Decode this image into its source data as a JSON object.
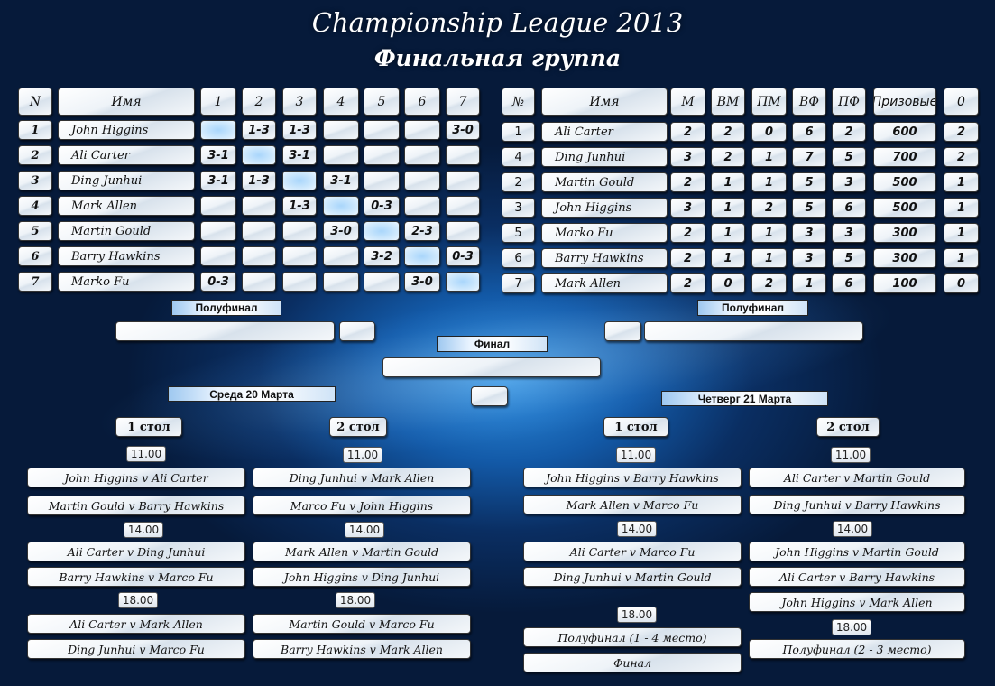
{
  "title": "Championship League 2013",
  "subtitle": "Финальная группа",
  "group_table": {
    "headers": [
      "N",
      "Имя",
      "1",
      "2",
      "3",
      "4",
      "5",
      "6",
      "7"
    ],
    "rows": [
      {
        "n": "1",
        "name": "John Higgins",
        "results": [
          "",
          "1-3",
          "1-3",
          "",
          "",
          "",
          "3-0"
        ]
      },
      {
        "n": "2",
        "name": "Ali Carter",
        "results": [
          "3-1",
          "",
          "3-1",
          "",
          "",
          "",
          ""
        ]
      },
      {
        "n": "3",
        "name": "Ding Junhui",
        "results": [
          "3-1",
          "1-3",
          "",
          "3-1",
          "",
          "",
          ""
        ]
      },
      {
        "n": "4",
        "name": "Mark Allen",
        "results": [
          "",
          "",
          "1-3",
          "",
          "0-3",
          "",
          ""
        ]
      },
      {
        "n": "5",
        "name": "Martin Gould",
        "results": [
          "",
          "",
          "",
          "3-0",
          "",
          "2-3",
          ""
        ]
      },
      {
        "n": "6",
        "name": "Barry Hawkins",
        "results": [
          "",
          "",
          "",
          "",
          "3-2",
          "",
          "0-3"
        ]
      },
      {
        "n": "7",
        "name": "Marko Fu",
        "results": [
          "0-3",
          "",
          "",
          "",
          "",
          "3-0",
          ""
        ]
      }
    ]
  },
  "standings": {
    "headers": [
      "№",
      "Имя",
      "М",
      "ВМ",
      "ПМ",
      "ВФ",
      "ПФ",
      "Призовые",
      "0"
    ],
    "rows": [
      [
        "1",
        "Ali Carter",
        "2",
        "2",
        "0",
        "6",
        "2",
        "600",
        "2"
      ],
      [
        "4",
        "Ding Junhui",
        "3",
        "2",
        "1",
        "7",
        "5",
        "700",
        "2"
      ],
      [
        "2",
        "Martin Gould",
        "2",
        "1",
        "1",
        "5",
        "3",
        "500",
        "1"
      ],
      [
        "3",
        "John Higgins",
        "3",
        "1",
        "2",
        "5",
        "6",
        "500",
        "1"
      ],
      [
        "5",
        "Marko Fu",
        "2",
        "1",
        "1",
        "3",
        "3",
        "300",
        "1"
      ],
      [
        "6",
        "Barry Hawkins",
        "2",
        "1",
        "1",
        "3",
        "5",
        "300",
        "1"
      ],
      [
        "7",
        "Mark Allen",
        "2",
        "0",
        "2",
        "1",
        "6",
        "100",
        "0"
      ]
    ]
  },
  "playoff": {
    "semifinal_left": "Полуфинал",
    "semifinal_right": "Полуфинал",
    "final": "Финал"
  },
  "schedule": {
    "wednesday": {
      "date": "Среда  20 Марта",
      "tables": [
        {
          "label": "1 стол",
          "slots": [
            {
              "time": "11.00",
              "matches": [
                "John Higgins v Ali Carter",
                "Martin Gould v Barry Hawkins"
              ]
            },
            {
              "time": "14.00",
              "matches": [
                "Ali Carter v Ding Junhui",
                "Barry Hawkins  v Marco Fu"
              ]
            },
            {
              "time": "18.00",
              "matches": [
                "Ali Carter v Mark Allen",
                "Ding Junhui v Marco Fu"
              ]
            }
          ]
        },
        {
          "label": "2 стол",
          "slots": [
            {
              "time": "11.00",
              "matches": [
                "Ding Junhui v Mark Allen",
                "Marco Fu v John Higgins"
              ]
            },
            {
              "time": "14.00",
              "matches": [
                "Mark Allen v Martin Gould",
                "John Higgins v Ding Junhui"
              ]
            },
            {
              "time": "18.00",
              "matches": [
                "Martin Gould v Marco Fu",
                "Barry Hawkins  v Mark Allen"
              ]
            }
          ]
        }
      ]
    },
    "thursday": {
      "date": "Четверг 21 Марта",
      "tables": [
        {
          "label": "1 стол",
          "slots": [
            {
              "time": "11.00",
              "matches": [
                "John Higgins v Barry  Hawkins",
                "Mark Allen v Marco Fu"
              ]
            },
            {
              "time": "14.00",
              "matches": [
                "Ali Carter  v Marco Fu",
                "Ding Junhui  v Martin Gould"
              ]
            },
            {
              "time": "18.00",
              "matches": [
                "Полуфинал (1 - 4 место)",
                "Финал"
              ]
            }
          ]
        },
        {
          "label": "2 стол",
          "slots": [
            {
              "time": "11.00",
              "matches": [
                "Ali Carter  v Martin Gould",
                "Ding Junhui v Barry Hawkins"
              ]
            },
            {
              "time": "14.00",
              "matches": [
                "John Higgins  v Martin Gould",
                "Ali Carter  v Barry Hawkins",
                "John Higgins  v Mark Allen"
              ]
            },
            {
              "time": "18.00",
              "matches": [
                "Полуфинал (2 - 3 место)"
              ]
            }
          ]
        }
      ]
    }
  }
}
